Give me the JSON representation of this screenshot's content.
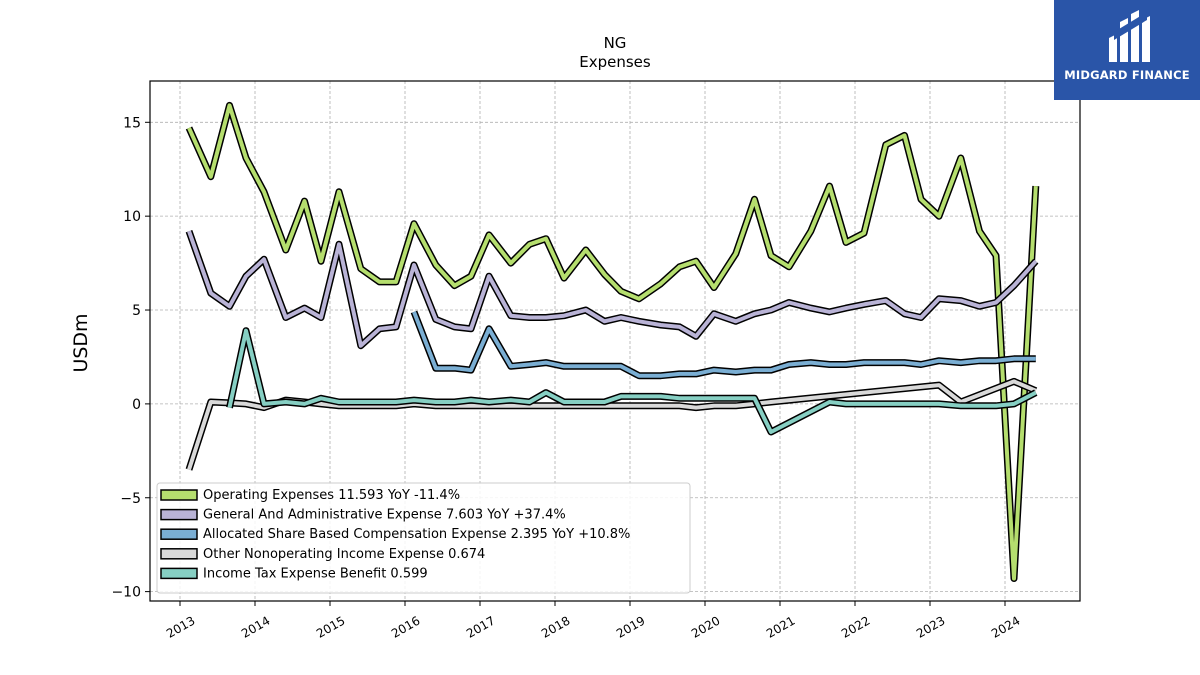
{
  "logo": {
    "text": "MIDGARD FINANCE"
  },
  "chart_data": {
    "type": "line",
    "title": "NG",
    "subtitle": "Expenses",
    "ylabel": "USDm",
    "xlabel": "",
    "xlim": [
      2012.6,
      2025.0
    ],
    "ylim": [
      -10.5,
      17.2
    ],
    "yticks": [
      -10,
      -5,
      0,
      5,
      10,
      15
    ],
    "xticks": [
      "2013",
      "2014",
      "2015",
      "2016",
      "2017",
      "2018",
      "2019",
      "2020",
      "2021",
      "2022",
      "2023",
      "2024"
    ],
    "grid": true,
    "legend_position": "lower-left",
    "series": [
      {
        "name": "Operating Expenses  11.593 YoY -11.4%",
        "color": "#b5de6e",
        "x": [
          2013.12,
          2013.41,
          2013.66,
          2013.88,
          2014.12,
          2014.41,
          2014.66,
          2014.88,
          2015.12,
          2015.41,
          2015.66,
          2015.88,
          2016.12,
          2016.41,
          2016.66,
          2016.88,
          2017.12,
          2017.41,
          2017.66,
          2017.88,
          2018.12,
          2018.41,
          2018.66,
          2018.88,
          2019.12,
          2019.41,
          2019.66,
          2019.88,
          2020.12,
          2020.41,
          2020.66,
          2020.88,
          2021.12,
          2021.41,
          2021.66,
          2021.88,
          2022.12,
          2022.41,
          2022.66,
          2022.88,
          2023.12,
          2023.41,
          2023.66,
          2023.88,
          2024.12,
          2024.41
        ],
        "values": [
          14.7,
          12.1,
          15.9,
          13.1,
          11.3,
          8.2,
          10.8,
          7.6,
          11.3,
          7.2,
          6.5,
          6.5,
          9.6,
          7.4,
          6.3,
          6.8,
          9.0,
          7.5,
          8.5,
          8.8,
          6.7,
          8.2,
          6.9,
          6.0,
          5.6,
          6.4,
          7.3,
          7.6,
          6.2,
          8.0,
          10.9,
          7.9,
          7.3,
          9.2,
          11.6,
          8.6,
          9.1,
          13.8,
          14.3,
          10.9,
          10.0,
          13.1,
          9.2,
          7.9,
          -9.3,
          11.6
        ]
      },
      {
        "name": "General And Administrative Expense  7.603 YoY +37.4%",
        "color": "#b9b3d6",
        "x": [
          2013.12,
          2013.41,
          2013.66,
          2013.88,
          2014.12,
          2014.41,
          2014.66,
          2014.88,
          2015.12,
          2015.41,
          2015.66,
          2015.88,
          2016.12,
          2016.41,
          2016.66,
          2016.88,
          2017.12,
          2017.41,
          2017.66,
          2017.88,
          2018.12,
          2018.41,
          2018.66,
          2018.88,
          2019.12,
          2019.41,
          2019.66,
          2019.88,
          2020.12,
          2020.41,
          2020.66,
          2020.88,
          2021.12,
          2021.41,
          2021.66,
          2021.88,
          2022.12,
          2022.41,
          2022.66,
          2022.88,
          2023.12,
          2023.41,
          2023.66,
          2023.88,
          2024.12,
          2024.41
        ],
        "values": [
          9.2,
          5.9,
          5.2,
          6.8,
          7.7,
          4.6,
          5.1,
          4.6,
          8.5,
          3.1,
          4.0,
          4.1,
          7.4,
          4.5,
          4.1,
          4.0,
          6.8,
          4.7,
          4.6,
          4.6,
          4.7,
          5.0,
          4.4,
          4.6,
          4.4,
          4.2,
          4.1,
          3.6,
          4.8,
          4.4,
          4.8,
          5.0,
          5.4,
          5.1,
          4.9,
          5.1,
          5.3,
          5.5,
          4.8,
          4.6,
          5.6,
          5.5,
          5.2,
          5.4,
          6.3,
          7.6
        ]
      },
      {
        "name": "Allocated Share Based Compensation Expense  2.395 YoY +10.8%",
        "color": "#7aaed3",
        "x": [
          2016.12,
          2016.41,
          2016.66,
          2016.88,
          2017.12,
          2017.41,
          2017.66,
          2017.88,
          2018.12,
          2018.41,
          2018.66,
          2018.88,
          2019.12,
          2019.41,
          2019.66,
          2019.88,
          2020.12,
          2020.41,
          2020.66,
          2020.88,
          2021.12,
          2021.41,
          2021.66,
          2021.88,
          2022.12,
          2022.41,
          2022.66,
          2022.88,
          2023.12,
          2023.41,
          2023.66,
          2023.88,
          2024.12,
          2024.41
        ],
        "values": [
          4.9,
          1.9,
          1.9,
          1.8,
          4.0,
          2.0,
          2.1,
          2.2,
          2.0,
          2.0,
          2.0,
          2.0,
          1.5,
          1.5,
          1.6,
          1.6,
          1.8,
          1.7,
          1.8,
          1.8,
          2.1,
          2.2,
          2.1,
          2.1,
          2.2,
          2.2,
          2.2,
          2.1,
          2.3,
          2.2,
          2.3,
          2.3,
          2.4,
          2.4
        ]
      },
      {
        "name": "Other Nonoperating Income Expense  0.674",
        "color": "#d9d9d9",
        "x": [
          2013.12,
          2013.41,
          2013.66,
          2013.88,
          2014.12,
          2014.41,
          2014.66,
          2014.88,
          2015.12,
          2015.41,
          2015.66,
          2015.88,
          2016.12,
          2016.41,
          2016.66,
          2016.88,
          2017.12,
          2017.41,
          2017.66,
          2017.88,
          2018.12,
          2018.41,
          2018.66,
          2018.88,
          2019.12,
          2019.41,
          2019.66,
          2019.88,
          2020.12,
          2020.41,
          2020.66,
          2020.88,
          2023.12,
          2023.41,
          2024.12,
          2024.41
        ],
        "values": [
          -3.5,
          0.1,
          0.05,
          0.0,
          -0.2,
          0.2,
          0.1,
          0.0,
          -0.1,
          -0.1,
          -0.1,
          -0.1,
          0.0,
          -0.1,
          -0.1,
          -0.1,
          -0.1,
          -0.1,
          -0.1,
          -0.1,
          -0.1,
          -0.1,
          -0.1,
          -0.1,
          -0.1,
          -0.1,
          -0.1,
          -0.2,
          -0.1,
          -0.1,
          0.0,
          0.1,
          1.0,
          0.1,
          1.2,
          0.7
        ]
      },
      {
        "name": "Income Tax Expense Benefit  0.599",
        "color": "#86cfc3",
        "x": [
          2013.66,
          2013.88,
          2014.12,
          2014.41,
          2014.66,
          2014.88,
          2015.12,
          2015.41,
          2015.66,
          2015.88,
          2016.12,
          2016.41,
          2016.66,
          2016.88,
          2017.12,
          2017.41,
          2017.66,
          2017.88,
          2018.12,
          2018.41,
          2018.66,
          2018.88,
          2019.12,
          2019.41,
          2019.66,
          2019.88,
          2020.12,
          2020.41,
          2020.66,
          2020.88,
          2021.66,
          2021.88,
          2022.12,
          2022.41,
          2022.66,
          2022.88,
          2023.12,
          2023.41,
          2023.66,
          2023.88,
          2024.12,
          2024.41
        ],
        "values": [
          -0.2,
          3.9,
          0.0,
          0.1,
          0.0,
          0.3,
          0.1,
          0.1,
          0.1,
          0.1,
          0.2,
          0.1,
          0.1,
          0.2,
          0.1,
          0.2,
          0.1,
          0.6,
          0.1,
          0.1,
          0.1,
          0.4,
          0.4,
          0.4,
          0.3,
          0.3,
          0.3,
          0.3,
          0.3,
          -1.5,
          0.1,
          0.0,
          0.0,
          0.0,
          0.0,
          0.0,
          0.0,
          -0.1,
          -0.1,
          -0.1,
          0.0,
          0.6
        ]
      }
    ]
  }
}
